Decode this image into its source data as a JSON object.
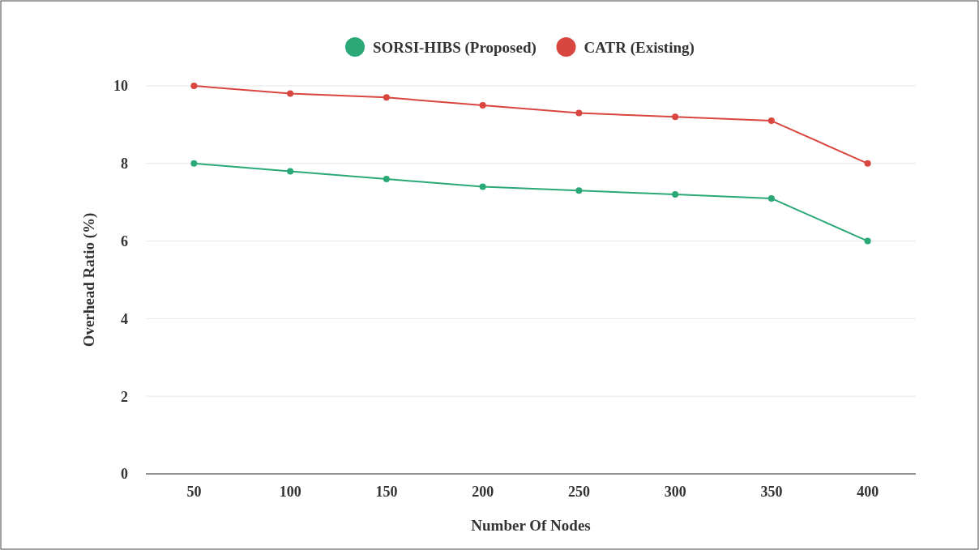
{
  "chart_data": {
    "type": "line",
    "xlabel": "Number Of Nodes",
    "ylabel": "Overhead Ratio (%)",
    "categories": [
      "50",
      "100",
      "150",
      "200",
      "250",
      "300",
      "350",
      "400"
    ],
    "series": [
      {
        "name": "SORSI-HIBS (Proposed)",
        "color": "#2aa876",
        "values": [
          8,
          7.8,
          7.6,
          7.4,
          7.3,
          7.2,
          7.1,
          6
        ]
      },
      {
        "name": "CATR (Existing)",
        "color": "#d9463f",
        "values": [
          10,
          9.8,
          9.7,
          9.5,
          9.3,
          9.2,
          9.1,
          8
        ]
      }
    ],
    "ylim": [
      0,
      10
    ],
    "yticks": [
      0,
      2,
      4,
      6,
      8,
      10
    ],
    "grid": "y",
    "legend": "top",
    "marker": "circle",
    "line_style": "solid"
  }
}
